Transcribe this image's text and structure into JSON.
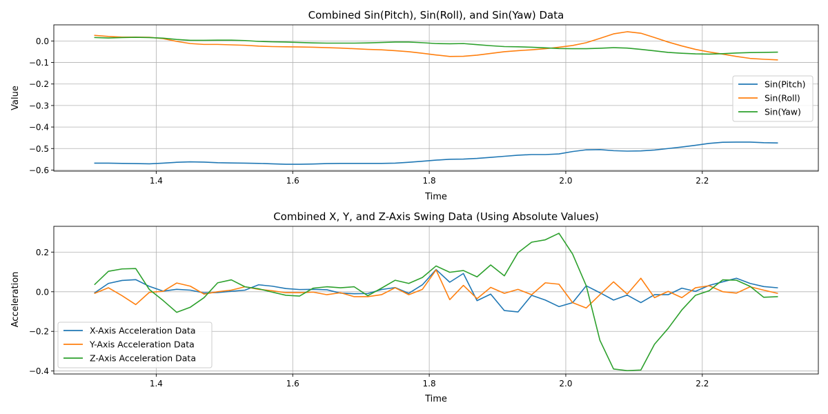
{
  "chart_data": [
    {
      "type": "line",
      "title": "Combined Sin(Pitch), Sin(Roll), and Sin(Yaw) Data",
      "xlabel": "Time",
      "ylabel": "Value",
      "xlim": [
        1.25,
        2.37
      ],
      "ylim": [
        -0.605,
        0.075
      ],
      "xticks": [
        1.4,
        1.6,
        1.8,
        2.0,
        2.2
      ],
      "xtick_labels": [
        "1.4",
        "1.6",
        "1.8",
        "2.0",
        "2.2"
      ],
      "yticks": [
        -0.6,
        -0.5,
        -0.4,
        -0.3,
        -0.2,
        -0.1,
        0.0
      ],
      "ytick_labels": [
        "−0.6",
        "−0.5",
        "−0.4",
        "−0.3",
        "−0.2",
        "−0.1",
        "0.0"
      ],
      "grid": true,
      "legend_position": "center-right",
      "x": [
        1.31,
        1.33,
        1.35,
        1.37,
        1.39,
        1.41,
        1.43,
        1.45,
        1.47,
        1.49,
        1.51,
        1.53,
        1.55,
        1.57,
        1.59,
        1.61,
        1.63,
        1.65,
        1.67,
        1.69,
        1.71,
        1.73,
        1.75,
        1.77,
        1.79,
        1.81,
        1.83,
        1.85,
        1.87,
        1.89,
        1.91,
        1.93,
        1.95,
        1.97,
        1.99,
        2.01,
        2.03,
        2.05,
        2.07,
        2.09,
        2.11,
        2.13,
        2.15,
        2.17,
        2.19,
        2.21,
        2.23,
        2.25,
        2.27,
        2.29,
        2.31
      ],
      "series": [
        {
          "name": "Sin(Pitch)",
          "color": "#1f77b4",
          "values": [
            -0.568,
            -0.568,
            -0.569,
            -0.57,
            -0.571,
            -0.568,
            -0.564,
            -0.562,
            -0.563,
            -0.566,
            -0.567,
            -0.568,
            -0.569,
            -0.571,
            -0.573,
            -0.573,
            -0.572,
            -0.57,
            -0.569,
            -0.569,
            -0.569,
            -0.569,
            -0.568,
            -0.564,
            -0.559,
            -0.554,
            -0.55,
            -0.549,
            -0.546,
            -0.541,
            -0.536,
            -0.531,
            -0.528,
            -0.528,
            -0.525,
            -0.514,
            -0.506,
            -0.505,
            -0.51,
            -0.512,
            -0.511,
            -0.507,
            -0.5,
            -0.493,
            -0.485,
            -0.476,
            -0.471,
            -0.47,
            -0.47,
            -0.473,
            -0.474
          ]
        },
        {
          "name": "Sin(Roll)",
          "color": "#ff7f0e",
          "values": [
            0.026,
            0.021,
            0.018,
            0.018,
            0.017,
            0.011,
            -0.002,
            -0.012,
            -0.016,
            -0.016,
            -0.018,
            -0.02,
            -0.024,
            -0.026,
            -0.027,
            -0.028,
            -0.029,
            -0.031,
            -0.033,
            -0.036,
            -0.039,
            -0.041,
            -0.045,
            -0.05,
            -0.057,
            -0.065,
            -0.072,
            -0.071,
            -0.066,
            -0.058,
            -0.05,
            -0.045,
            -0.041,
            -0.036,
            -0.029,
            -0.021,
            -0.008,
            0.012,
            0.033,
            0.043,
            0.036,
            0.016,
            -0.005,
            -0.023,
            -0.039,
            -0.051,
            -0.061,
            -0.072,
            -0.081,
            -0.085,
            -0.088
          ]
        },
        {
          "name": "Sin(Yaw)",
          "color": "#2ca02c",
          "values": [
            0.016,
            0.014,
            0.016,
            0.017,
            0.016,
            0.013,
            0.007,
            0.003,
            0.003,
            0.004,
            0.004,
            0.002,
            -0.002,
            -0.004,
            -0.005,
            -0.007,
            -0.009,
            -0.01,
            -0.01,
            -0.01,
            -0.009,
            -0.007,
            -0.005,
            -0.005,
            -0.008,
            -0.012,
            -0.013,
            -0.012,
            -0.017,
            -0.022,
            -0.026,
            -0.027,
            -0.029,
            -0.032,
            -0.035,
            -0.036,
            -0.036,
            -0.034,
            -0.031,
            -0.033,
            -0.039,
            -0.046,
            -0.053,
            -0.057,
            -0.06,
            -0.061,
            -0.059,
            -0.056,
            -0.054,
            -0.053,
            -0.052
          ]
        }
      ]
    },
    {
      "type": "line",
      "title": "Combined X, Y, and Z-Axis Swing Data (Using Absolute Values)",
      "xlabel": "Time",
      "ylabel": "Acceleration",
      "xlim": [
        1.25,
        2.37
      ],
      "ylim": [
        -0.415,
        0.33
      ],
      "xticks": [
        1.4,
        1.6,
        1.8,
        2.0,
        2.2
      ],
      "xtick_labels": [
        "1.4",
        "1.6",
        "1.8",
        "2.0",
        "2.2"
      ],
      "yticks": [
        -0.4,
        -0.2,
        0.0,
        0.2
      ],
      "ytick_labels": [
        "−0.4",
        "−0.2",
        "0.0",
        "0.2"
      ],
      "grid": true,
      "legend_position": "lower-left",
      "x": [
        1.31,
        1.33,
        1.35,
        1.37,
        1.39,
        1.41,
        1.43,
        1.45,
        1.47,
        1.49,
        1.51,
        1.53,
        1.55,
        1.57,
        1.59,
        1.61,
        1.63,
        1.65,
        1.67,
        1.69,
        1.71,
        1.73,
        1.75,
        1.77,
        1.79,
        1.81,
        1.83,
        1.85,
        1.87,
        1.89,
        1.91,
        1.93,
        1.95,
        1.97,
        1.99,
        2.01,
        2.03,
        2.05,
        2.07,
        2.09,
        2.11,
        2.13,
        2.15,
        2.17,
        2.19,
        2.21,
        2.23,
        2.25,
        2.27,
        2.29,
        2.31
      ],
      "series": [
        {
          "name": "X-Axis Acceleration Data",
          "color": "#1f77b4",
          "values": [
            -0.005,
            0.042,
            0.057,
            0.061,
            0.027,
            0.003,
            0.012,
            0.008,
            -0.006,
            -0.004,
            0.002,
            0.008,
            0.035,
            0.028,
            0.016,
            0.011,
            0.012,
            0.01,
            -0.007,
            -0.01,
            -0.009,
            0.011,
            0.021,
            -0.008,
            0.035,
            0.112,
            0.048,
            0.092,
            -0.045,
            -0.012,
            -0.095,
            -0.102,
            -0.018,
            -0.042,
            -0.075,
            -0.055,
            0.03,
            -0.005,
            -0.042,
            -0.017,
            -0.055,
            -0.015,
            -0.015,
            0.018,
            0.002,
            0.032,
            0.05,
            0.068,
            0.042,
            0.026,
            0.02
          ]
        },
        {
          "name": "Y-Axis Acceleration Data",
          "color": "#ff7f0e",
          "values": [
            -0.008,
            0.02,
            -0.02,
            -0.065,
            -0.003,
            0.002,
            0.044,
            0.028,
            -0.012,
            0.0,
            0.008,
            0.025,
            0.012,
            0.005,
            -0.005,
            -0.005,
            -0.002,
            -0.015,
            -0.005,
            -0.025,
            -0.025,
            -0.015,
            0.02,
            -0.015,
            0.012,
            0.11,
            -0.04,
            0.032,
            -0.035,
            0.022,
            -0.008,
            0.012,
            -0.015,
            0.045,
            0.038,
            -0.055,
            -0.082,
            -0.015,
            0.05,
            -0.012,
            0.068,
            -0.03,
            0.002,
            -0.03,
            0.02,
            0.03,
            0.0,
            -0.007,
            0.025,
            0.008,
            -0.008
          ]
        },
        {
          "name": "Z-Axis Acceleration Data",
          "color": "#2ca02c",
          "values": [
            0.037,
            0.103,
            0.115,
            0.117,
            0.011,
            -0.044,
            -0.104,
            -0.078,
            -0.03,
            0.045,
            0.06,
            0.025,
            0.015,
            -0.002,
            -0.018,
            -0.022,
            0.018,
            0.025,
            0.02,
            0.025,
            -0.02,
            0.018,
            0.058,
            0.042,
            0.072,
            0.13,
            0.098,
            0.107,
            0.075,
            0.135,
            0.08,
            0.197,
            0.25,
            0.262,
            0.295,
            0.19,
            0.03,
            -0.245,
            -0.39,
            -0.398,
            -0.395,
            -0.265,
            -0.185,
            -0.092,
            -0.018,
            0.005,
            0.06,
            0.058,
            0.027,
            -0.028,
            -0.025
          ]
        }
      ]
    }
  ]
}
